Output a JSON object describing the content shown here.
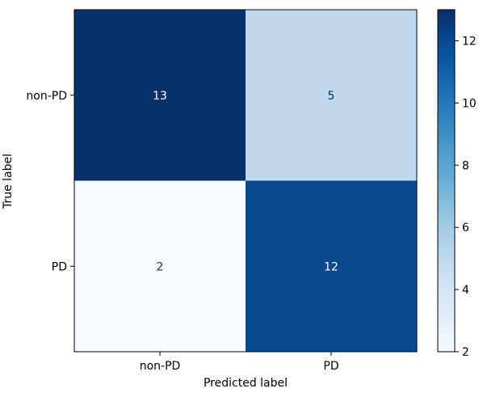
{
  "chart_data": {
    "type": "heatmap",
    "title": "",
    "xlabel": "Predicted label",
    "ylabel": "True label",
    "x_categories": [
      "non-PD",
      "PD"
    ],
    "y_categories": [
      "non-PD",
      "PD"
    ],
    "values": [
      [
        13,
        5
      ],
      [
        2,
        12
      ]
    ],
    "colorbar": {
      "min": 2,
      "max": 13,
      "ticks": [
        2,
        4,
        6,
        8,
        10,
        12
      ],
      "colormap": "Blues"
    },
    "grid": false,
    "text_color_light": "#ffffff",
    "text_color_dark": "#08306b"
  }
}
